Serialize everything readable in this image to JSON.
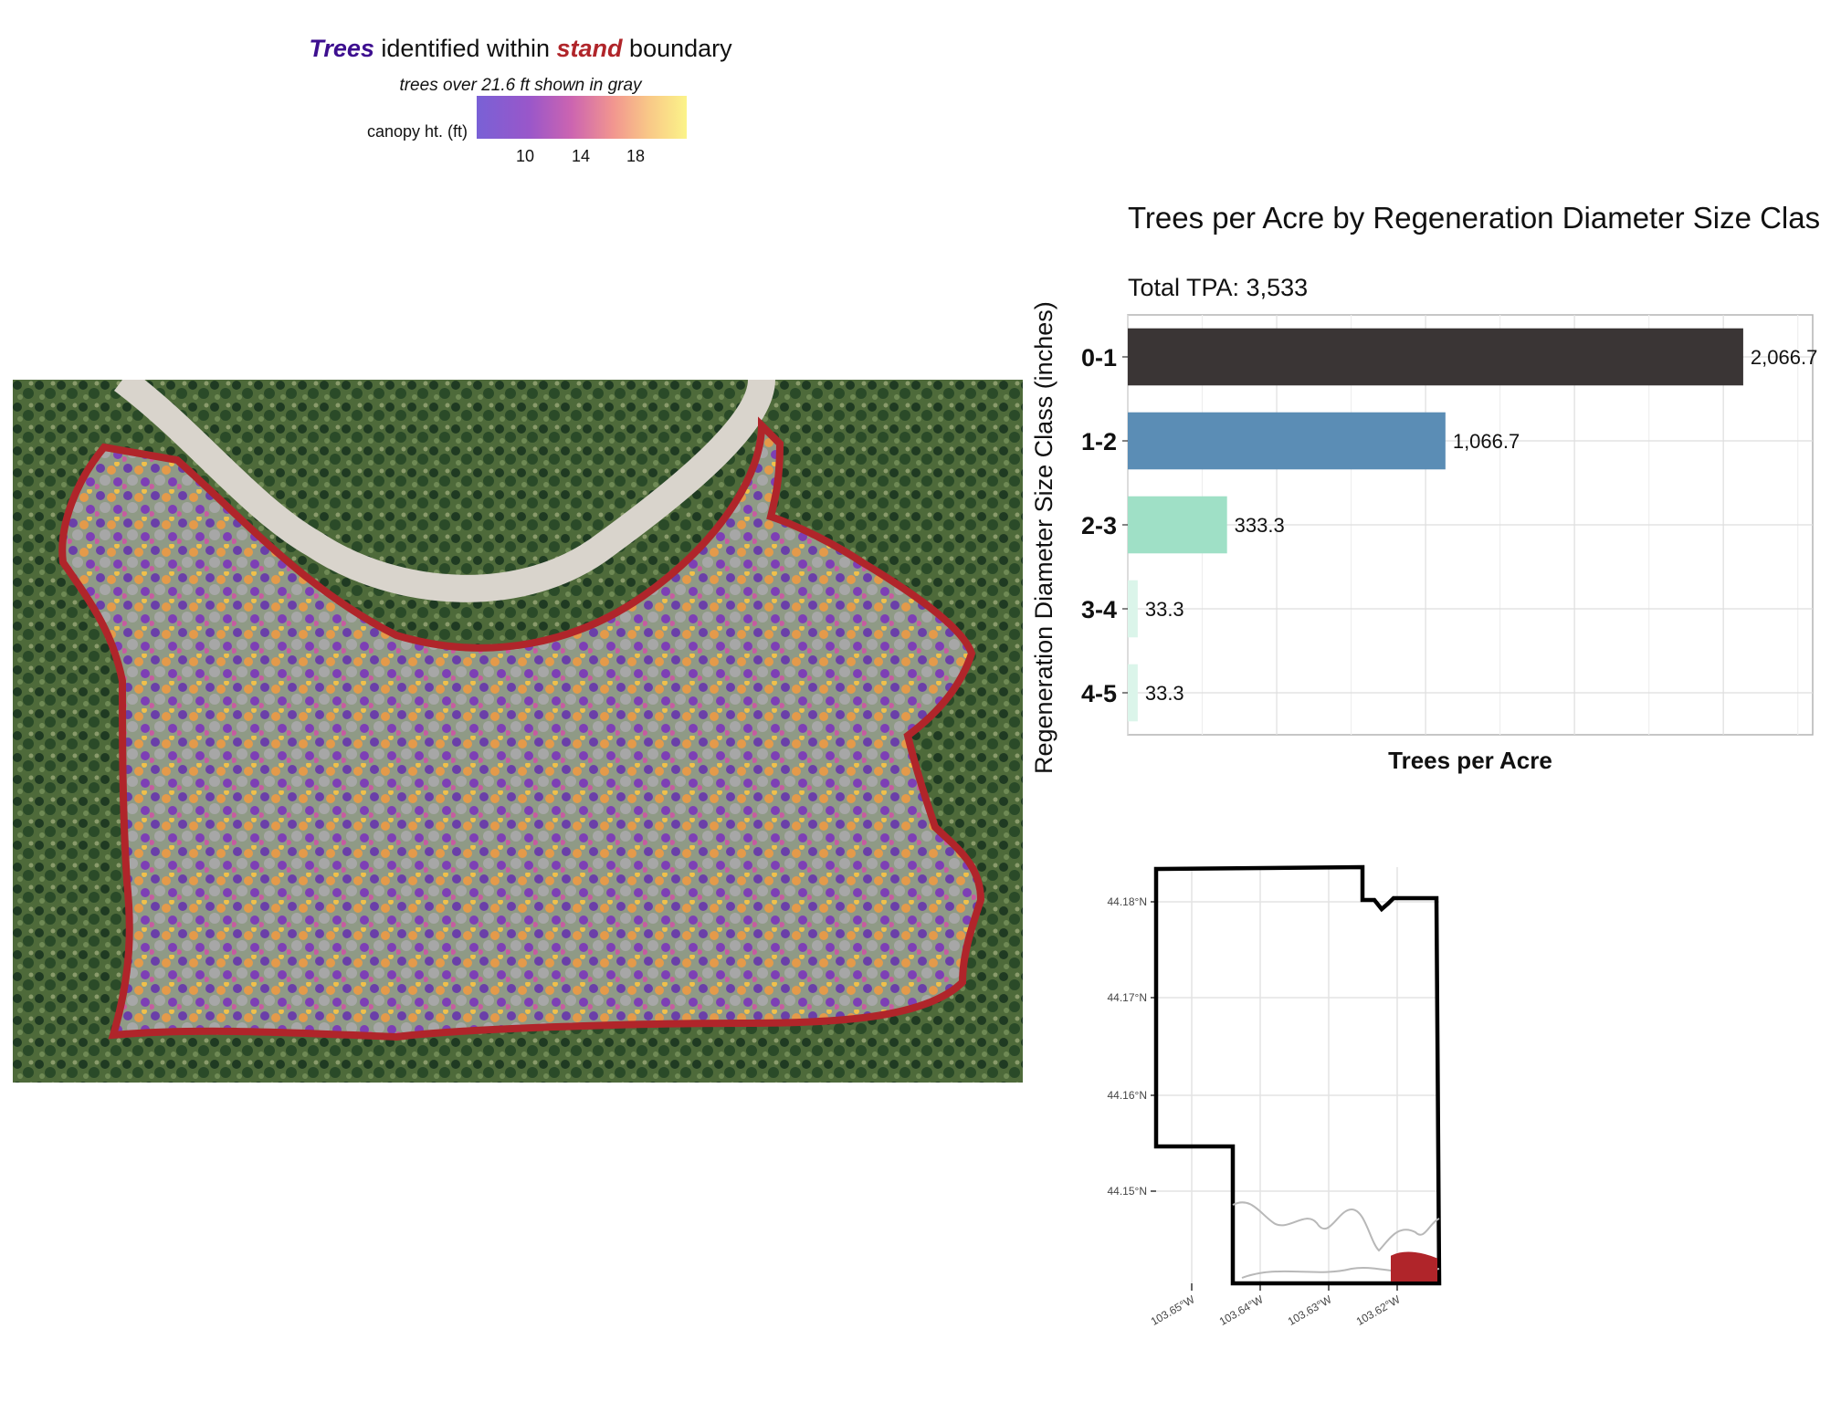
{
  "map_legend": {
    "title_trees": "Trees",
    "title_mid": " identified within ",
    "title_stand": "stand",
    "title_end": " boundary",
    "subtitle": "trees over 21.6 ft shown in gray",
    "label": "canopy ht. (ft)",
    "ticks": [
      "10",
      "14",
      "18"
    ],
    "gradient_colors": [
      "#6a4fd1",
      "#c653a8",
      "#f08a83",
      "#fbf27c"
    ],
    "boundary_color": "#b0252a"
  },
  "chart_data": [
    {
      "type": "bar",
      "orientation": "horizontal",
      "title": "Trees per Acre by Regeneration Diameter Size Clas",
      "subtitle": "Total TPA: 3,533",
      "xlabel": "Trees per Acre",
      "ylabel": "Regeneration Diameter Size Class (inches)",
      "categories": [
        "0-1",
        "1-2",
        "2-3",
        "3-4",
        "4-5"
      ],
      "values": [
        2066.7,
        1066.7,
        333.3,
        33.3,
        33.3
      ],
      "value_labels": [
        "2,066.7",
        "1,066.7",
        "333.3",
        "33.3",
        "33.3"
      ],
      "colors": [
        "#3a3535",
        "#5b8db5",
        "#9fe0c6",
        "#dbf5ea",
        "#dbf5ea"
      ],
      "xlim": [
        0,
        2300
      ],
      "grid": true
    },
    {
      "type": "map",
      "lat_ticks": [
        "44.18°N",
        "44.17°N",
        "44.16°N",
        "44.15°N"
      ],
      "lon_ticks": [
        "103.65°W",
        "103.64°W",
        "103.63°W",
        "103.62°W"
      ],
      "boundary_color": "#000000",
      "stand_color": "#b0252a"
    }
  ]
}
